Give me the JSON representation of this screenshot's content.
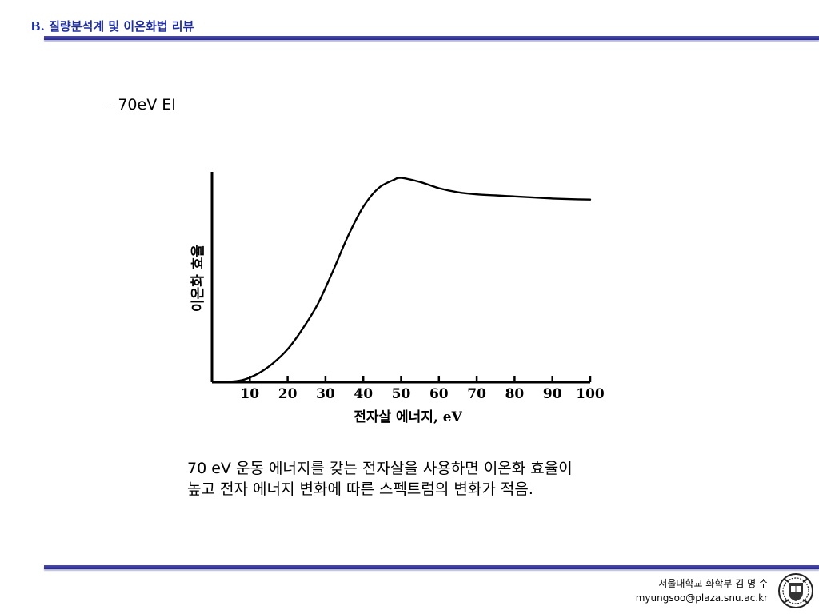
{
  "header": {
    "title": "B. 질량분석계 및 이온화법 리뷰"
  },
  "subhead": {
    "dash": "----",
    "text": "70eV EI"
  },
  "chart_data": {
    "type": "line",
    "xlabel": "전자살 에너지, eV",
    "ylabel": "이온화 효율",
    "xlim": [
      0,
      100
    ],
    "ylim": [
      0,
      1
    ],
    "x_ticks": [
      10,
      20,
      30,
      40,
      50,
      60,
      70,
      80,
      90,
      100
    ],
    "grid": false,
    "legend": "none",
    "series": [
      {
        "x": [
          3,
          8,
          12,
          16,
          20,
          24,
          28,
          32,
          36,
          40,
          44,
          48,
          50,
          55,
          60,
          65,
          70,
          75,
          80,
          85,
          90,
          95,
          100
        ],
        "values": [
          0,
          0.01,
          0.04,
          0.09,
          0.16,
          0.26,
          0.38,
          0.54,
          0.71,
          0.85,
          0.94,
          0.98,
          0.99,
          0.97,
          0.94,
          0.92,
          0.91,
          0.905,
          0.9,
          0.895,
          0.89,
          0.887,
          0.885
        ]
      }
    ],
    "color": "#000000"
  },
  "caption": {
    "line1": "70 eV 운동 에너지를 갖는 전자살을 사용하면 이온화 효율이",
    "line2": "높고 전자 에너지 변화에 따른 스펙트럼의 변화가 적음."
  },
  "footer": {
    "affiliation": "서울대학교 화학부 김 명 수",
    "email": "myungsoo@plaza.snu.ac.kr"
  },
  "logo": {
    "icon": "university-seal-icon"
  }
}
